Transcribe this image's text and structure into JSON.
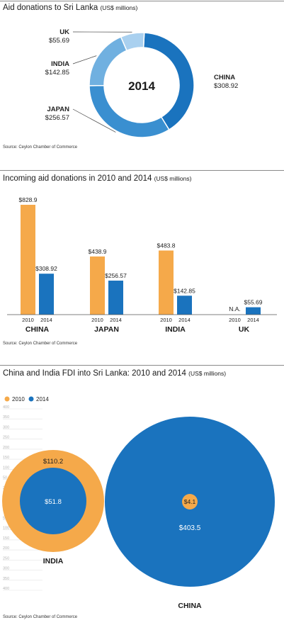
{
  "colors": {
    "c2010": "#f5a94a",
    "c2014": "#1a73be",
    "rule": "#8a8a8a"
  },
  "panel1": {
    "title": "Aid donations to Sri Lanka",
    "unit": "(US$ millions)",
    "source": "Source: Ceylon Chamber of Commerce",
    "center_label": "2014"
  },
  "panel2": {
    "title": "Incoming aid donations in 2010 and 2014",
    "unit": "(US$ millions)",
    "source": "Source: Ceylon Chamber of Commerce"
  },
  "panel3": {
    "title": "China and India FDI into Sri Lanka: 2010 and 2014",
    "unit": "(US$ millions)",
    "source": "Source: Ceylon Chamber of Commerce"
  },
  "chart_data": [
    {
      "type": "pie",
      "title": "Aid donations to Sri Lanka (US$ millions)",
      "center_label": "2014",
      "slices": [
        {
          "name": "CHINA",
          "label": "$308.92",
          "value": 308.92,
          "color": "#1a73be"
        },
        {
          "name": "JAPAN",
          "label": "$256.57",
          "value": 256.57,
          "color": "#3a8fd0"
        },
        {
          "name": "INDIA",
          "label": "$142.85",
          "value": 142.85,
          "color": "#70b0e0"
        },
        {
          "name": "UK",
          "label": "$55.69",
          "value": 55.69,
          "color": "#a9d0ef"
        }
      ]
    },
    {
      "type": "bar",
      "title": "Incoming aid donations in 2010 and 2014 (US$ millions)",
      "categories": [
        "CHINA",
        "JAPAN",
        "INDIA",
        "UK"
      ],
      "sub_labels": [
        "2010",
        "2014"
      ],
      "series": [
        {
          "values": [
            828.9,
            438.9,
            483.8,
            null
          ],
          "labels": [
            "$828.9",
            "$438.9",
            "$483.8",
            "N.A."
          ],
          "color": "#f5a94a"
        },
        {
          "values": [
            308.92,
            256.57,
            142.85,
            55.69
          ],
          "labels": [
            "$308.92",
            "$256.57",
            "$142.85",
            "$55.69"
          ],
          "color": "#1a73be"
        }
      ],
      "ylim": [
        0,
        900
      ]
    },
    {
      "type": "scatter",
      "title": "China and India FDI into Sri Lanka: 2010 and 2014 (US$ millions)",
      "legend": [
        "2010",
        "2014"
      ],
      "ticks": [
        "400",
        "350",
        "300",
        "250",
        "200",
        "150",
        "100",
        "50",
        "25",
        "0",
        "25",
        "50",
        "100",
        "150",
        "200",
        "250",
        "300",
        "350",
        "400"
      ],
      "groups": [
        {
          "name": "INDIA",
          "bubbles": [
            {
              "year": "2010",
              "value": 110.2,
              "label": "$110.2"
            },
            {
              "year": "2014",
              "value": 51.8,
              "label": "$51.8"
            }
          ]
        },
        {
          "name": "CHINA",
          "bubbles": [
            {
              "year": "2014",
              "value": 403.5,
              "label": "$403.5"
            },
            {
              "year": "2010",
              "value": 4.1,
              "label": "$4.1"
            }
          ]
        }
      ]
    }
  ]
}
